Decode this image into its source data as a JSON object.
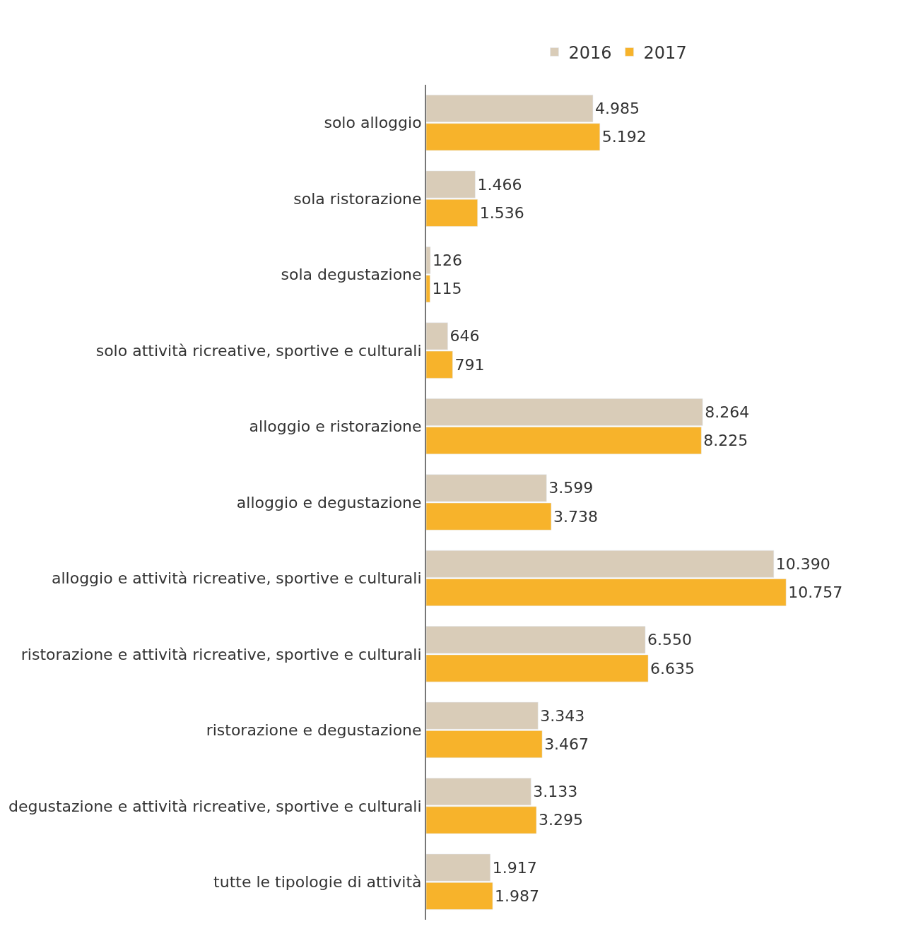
{
  "chart_data": {
    "type": "bar",
    "orientation": "horizontal",
    "legend": "top",
    "tick_labels": "y",
    "categories": [
      "solo alloggio",
      "sola ristorazione",
      "sola degustazione",
      "solo attività ricreative, sportive e culturali",
      "alloggio e ristorazione",
      "alloggio e degustazione",
      "alloggio e attività ricreative, sportive e culturali",
      "ristorazione e attività ricreative, sportive e culturali",
      "ristorazione e degustazione",
      "degustazione e attività ricreative, sportive e culturali",
      "tutte le tipologie di attività"
    ],
    "series": [
      {
        "name": "2016",
        "color": "#d9ccb8",
        "values": [
          4985,
          1466,
          126,
          646,
          8264,
          3599,
          10390,
          6550,
          3343,
          3133,
          1917
        ],
        "value_labels": [
          "4.985",
          "1.466",
          "126",
          "646",
          "8.264",
          "3.599",
          "10.390",
          "6.550",
          "3.343",
          "3.133",
          "1.917"
        ]
      },
      {
        "name": "2017",
        "color": "#f7b32b",
        "values": [
          5192,
          1536,
          115,
          791,
          8225,
          3738,
          10757,
          6635,
          3467,
          3295,
          1987
        ],
        "value_labels": [
          "5.192",
          "1.536",
          "115",
          "791",
          "8.225",
          "3.738",
          "10.757",
          "6.635",
          "3.467",
          "3.295",
          "1.987"
        ]
      }
    ]
  }
}
